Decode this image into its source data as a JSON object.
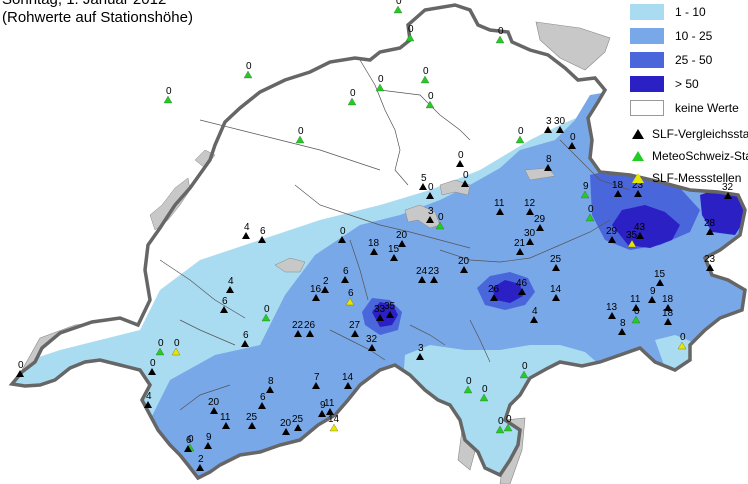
{
  "title": {
    "line1": "Sonntag, 1. Januar 2012",
    "line2": "(Rohwerte auf Stationshöhe)"
  },
  "colors": {
    "c1_10": "#a9dcf1",
    "c10_25": "#78a8e8",
    "c25_50": "#4a66db",
    "c_gt50": "#2a20c4",
    "none": "#ffffff",
    "neighbor": "#c8c8c8",
    "lake": "#c8c8c8",
    "border": "#666666",
    "slf_vergleich": "#000000",
    "meteoschweiz": "#22cc22",
    "slf_messstelle": "#e6e600"
  },
  "legend": {
    "classes": [
      {
        "label": "1 - 10",
        "color_key": "c1_10"
      },
      {
        "label": "10 - 25",
        "color_key": "c10_25"
      },
      {
        "label": "25 - 50",
        "color_key": "c25_50"
      },
      {
        "label": "> 50",
        "color_key": "c_gt50"
      },
      {
        "label": "keine Werte",
        "color_key": "none"
      }
    ],
    "markers": [
      {
        "label": "SLF-Vergleichsstationen",
        "color_key": "slf_vergleich"
      },
      {
        "label": "MeteoSchweiz-Stationen",
        "color_key": "meteoschweiz"
      },
      {
        "label": "SLF-Messstellen",
        "color_key": "slf_messstelle"
      }
    ]
  },
  "stations": [
    {
      "value": "0",
      "type": "slf_vergleich"
    },
    {
      "value": "0",
      "type": "meteoschweiz"
    },
    {
      "value": "0",
      "type": "meteoschweiz"
    },
    {
      "value": "0",
      "type": "meteoschweiz"
    },
    {
      "value": "0",
      "type": "meteoschweiz"
    },
    {
      "value": "0",
      "type": "meteoschweiz"
    },
    {
      "value": "0",
      "type": "meteoschweiz"
    },
    {
      "value": "0",
      "type": "meteoschweiz"
    },
    {
      "value": "3",
      "type": "slf_vergleich"
    },
    {
      "value": "30",
      "type": "slf_vergleich"
    },
    {
      "value": "0",
      "type": "slf_vergleich"
    },
    {
      "value": "8",
      "type": "slf_vergleich"
    },
    {
      "value": "0",
      "type": "meteoschweiz"
    },
    {
      "value": "0",
      "type": "slf_vergleich"
    },
    {
      "value": "0",
      "type": "slf_vergleich"
    },
    {
      "value": "5",
      "type": "slf_vergleich"
    },
    {
      "value": "0",
      "type": "slf_vergleich"
    },
    {
      "value": "0",
      "type": "meteoschweiz"
    },
    {
      "value": "0",
      "type": "meteoschweiz"
    },
    {
      "value": "0",
      "type": "meteoschweiz"
    },
    {
      "value": "3",
      "type": "slf_vergleich"
    },
    {
      "value": "0",
      "type": "meteoschweiz"
    },
    {
      "value": "11",
      "type": "slf_vergleich"
    },
    {
      "value": "12",
      "type": "slf_vergleich"
    },
    {
      "value": "9",
      "type": "meteoschweiz"
    },
    {
      "value": "18",
      "type": "slf_vergleich"
    },
    {
      "value": "23",
      "type": "slf_vergleich"
    },
    {
      "value": "32",
      "type": "slf_vergleich"
    },
    {
      "value": "0",
      "type": "meteoschweiz"
    },
    {
      "value": "29",
      "type": "slf_vergleich"
    },
    {
      "value": "30",
      "type": "slf_vergleich"
    },
    {
      "value": "21",
      "type": "slf_vergleich"
    },
    {
      "value": "29",
      "type": "slf_vergleich"
    },
    {
      "value": "43",
      "type": "slf_vergleich"
    },
    {
      "value": "35",
      "type": "slf_messstelle"
    },
    {
      "value": "28",
      "type": "slf_vergleich"
    },
    {
      "value": "0",
      "type": "slf_vergleich"
    },
    {
      "value": "20",
      "type": "slf_vergleich"
    },
    {
      "value": "18",
      "type": "slf_vergleich"
    },
    {
      "value": "15",
      "type": "slf_vergleich"
    },
    {
      "value": "4",
      "type": "slf_vergleich"
    },
    {
      "value": "6",
      "type": "slf_vergleich"
    },
    {
      "value": "24",
      "type": "slf_vergleich"
    },
    {
      "value": "23",
      "type": "slf_vergleich"
    },
    {
      "value": "20",
      "type": "slf_vergleich"
    },
    {
      "value": "25",
      "type": "slf_vergleich"
    },
    {
      "value": "23",
      "type": "slf_vergleich"
    },
    {
      "value": "6",
      "type": "slf_vergleich"
    },
    {
      "value": "2",
      "type": "slf_vergleich"
    },
    {
      "value": "16",
      "type": "slf_vergleich"
    },
    {
      "value": "6",
      "type": "slf_messstelle"
    },
    {
      "value": "4",
      "type": "slf_vergleich"
    },
    {
      "value": "6",
      "type": "slf_vergleich"
    },
    {
      "value": "0",
      "type": "meteoschweiz"
    },
    {
      "value": "26",
      "type": "slf_vergleich"
    },
    {
      "value": "46",
      "type": "slf_vergleich"
    },
    {
      "value": "14",
      "type": "slf_vergleich"
    },
    {
      "value": "15",
      "type": "slf_vergleich"
    },
    {
      "value": "11",
      "type": "slf_vergleich"
    },
    {
      "value": "9",
      "type": "slf_vergleich"
    },
    {
      "value": "18",
      "type": "slf_vergleich"
    },
    {
      "value": "13",
      "type": "slf_vergleich"
    },
    {
      "value": "8",
      "type": "slf_vergleich"
    },
    {
      "value": "0",
      "type": "meteoschweiz"
    },
    {
      "value": "18",
      "type": "slf_vergleich"
    },
    {
      "value": "0",
      "type": "slf_messstelle"
    },
    {
      "value": "6",
      "type": "slf_vergleich"
    },
    {
      "value": "22",
      "type": "slf_vergleich"
    },
    {
      "value": "26",
      "type": "slf_vergleich"
    },
    {
      "value": "27",
      "type": "slf_vergleich"
    },
    {
      "value": "33",
      "type": "slf_vergleich"
    },
    {
      "value": "35",
      "type": "slf_vergleich"
    },
    {
      "value": "32",
      "type": "slf_vergleich"
    },
    {
      "value": "4",
      "type": "slf_vergleich"
    },
    {
      "value": "3",
      "type": "slf_vergleich"
    },
    {
      "value": "0",
      "type": "slf_messstelle"
    },
    {
      "value": "0",
      "type": "meteoschweiz"
    },
    {
      "value": "0",
      "type": "slf_vergleich"
    },
    {
      "value": "4",
      "type": "slf_vergleich"
    },
    {
      "value": "8",
      "type": "slf_vergleich"
    },
    {
      "value": "7",
      "type": "slf_vergleich"
    },
    {
      "value": "14",
      "type": "slf_vergleich"
    },
    {
      "value": "6",
      "type": "slf_vergleich"
    },
    {
      "value": "9",
      "type": "slf_vergleich"
    },
    {
      "value": "11",
      "type": "slf_vergleich"
    },
    {
      "value": "14",
      "type": "slf_messstelle"
    },
    {
      "value": "20",
      "type": "slf_vergleich"
    },
    {
      "value": "11",
      "type": "slf_vergleich"
    },
    {
      "value": "25",
      "type": "slf_vergleich"
    },
    {
      "value": "20",
      "type": "slf_vergleich"
    },
    {
      "value": "25",
      "type": "slf_vergleich"
    },
    {
      "value": "0",
      "type": "meteoschweiz"
    },
    {
      "value": "6",
      "type": "slf_vergleich"
    },
    {
      "value": "9",
      "type": "slf_vergleich"
    },
    {
      "value": "2",
      "type": "slf_vergleich"
    },
    {
      "value": "0",
      "type": "meteoschweiz"
    },
    {
      "value": "0",
      "type": "meteoschweiz"
    },
    {
      "value": "0",
      "type": "meteoschweiz"
    },
    {
      "value": "0",
      "type": "meteoschweiz"
    },
    {
      "value": "0",
      "type": "meteoschweiz"
    }
  ]
}
